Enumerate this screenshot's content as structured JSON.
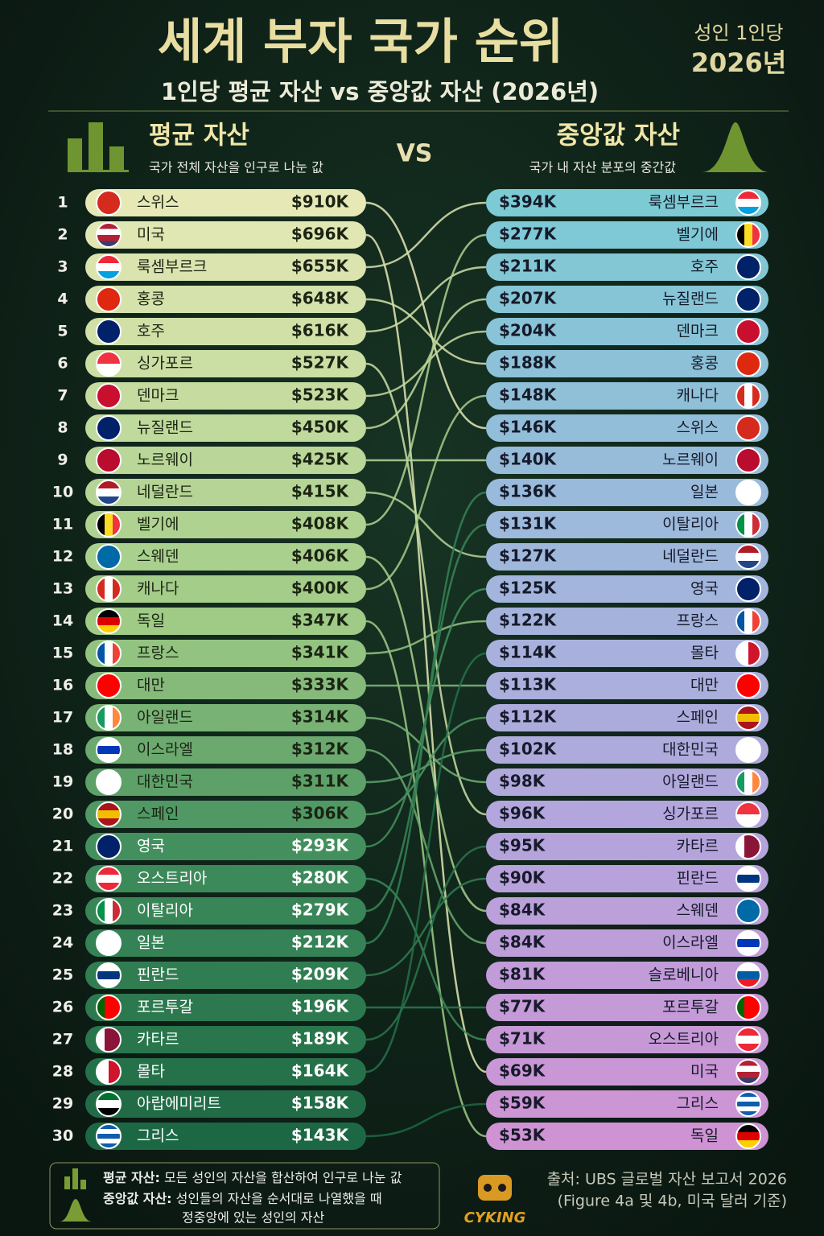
{
  "header": {
    "title": "세계 부자 국가 순위",
    "subtitle": "1인당 평균 자산 vs 중앙값 자산 (2026년)",
    "badge_line1": "성인 1인당",
    "badge_line2": "2026년"
  },
  "vs": "VS",
  "left": {
    "title": "평균 자산",
    "desc": "국가 전체 자산을 인구로 나눈 값",
    "rows": [
      {
        "rank": 1,
        "name": "스위스",
        "value": "$910K",
        "flag": [
          "h",
          "#d52b1e"
        ]
      },
      {
        "rank": 2,
        "name": "미국",
        "value": "$696K",
        "flag": [
          "h",
          "#b22234",
          "#ffffff",
          "#b22234",
          "#3c3b6e"
        ]
      },
      {
        "rank": 3,
        "name": "룩셈부르크",
        "value": "$655K",
        "flag": [
          "h",
          "#ed2939",
          "#ffffff",
          "#00a1de"
        ]
      },
      {
        "rank": 4,
        "name": "홍콩",
        "value": "$648K",
        "flag": [
          "h",
          "#de2910"
        ]
      },
      {
        "rank": 5,
        "name": "호주",
        "value": "$616K",
        "flag": [
          "h",
          "#012169"
        ]
      },
      {
        "rank": 6,
        "name": "싱가포르",
        "value": "$527K",
        "flag": [
          "h",
          "#ef3340",
          "#ffffff"
        ]
      },
      {
        "rank": 7,
        "name": "덴마크",
        "value": "$523K",
        "flag": [
          "h",
          "#c8102e"
        ]
      },
      {
        "rank": 8,
        "name": "뉴질랜드",
        "value": "$450K",
        "flag": [
          "h",
          "#012169"
        ]
      },
      {
        "rank": 9,
        "name": "노르웨이",
        "value": "$425K",
        "flag": [
          "h",
          "#ba0c2f"
        ]
      },
      {
        "rank": 10,
        "name": "네덜란드",
        "value": "$415K",
        "flag": [
          "h",
          "#ae1c28",
          "#ffffff",
          "#21468b"
        ]
      },
      {
        "rank": 11,
        "name": "벨기에",
        "value": "$408K",
        "flag": [
          "v",
          "#000000",
          "#fdda24",
          "#ef3340"
        ]
      },
      {
        "rank": 12,
        "name": "스웨덴",
        "value": "$406K",
        "flag": [
          "h",
          "#006aa7"
        ]
      },
      {
        "rank": 13,
        "name": "캐나다",
        "value": "$400K",
        "flag": [
          "v",
          "#d52b1e",
          "#ffffff",
          "#d52b1e"
        ]
      },
      {
        "rank": 14,
        "name": "독일",
        "value": "$347K",
        "flag": [
          "h",
          "#000000",
          "#dd0000",
          "#ffce00"
        ]
      },
      {
        "rank": 15,
        "name": "프랑스",
        "value": "$341K",
        "flag": [
          "v",
          "#0055a4",
          "#ffffff",
          "#ef4135"
        ]
      },
      {
        "rank": 16,
        "name": "대만",
        "value": "$333K",
        "flag": [
          "h",
          "#fe0000"
        ]
      },
      {
        "rank": 17,
        "name": "아일랜드",
        "value": "$314K",
        "flag": [
          "v",
          "#169b62",
          "#ffffff",
          "#ff883e"
        ]
      },
      {
        "rank": 18,
        "name": "이스라엘",
        "value": "$312K",
        "flag": [
          "h",
          "#ffffff",
          "#0038b8",
          "#ffffff"
        ]
      },
      {
        "rank": 19,
        "name": "대한민국",
        "value": "$311K",
        "flag": [
          "h",
          "#ffffff"
        ]
      },
      {
        "rank": 20,
        "name": "스페인",
        "value": "$306K",
        "flag": [
          "h",
          "#aa151b",
          "#f1bf00",
          "#aa151b"
        ]
      },
      {
        "rank": 21,
        "name": "영국",
        "value": "$293K",
        "flag": [
          "h",
          "#012169"
        ]
      },
      {
        "rank": 22,
        "name": "오스트리아",
        "value": "$280K",
        "flag": [
          "h",
          "#ed2939",
          "#ffffff",
          "#ed2939"
        ]
      },
      {
        "rank": 23,
        "name": "이탈리아",
        "value": "$279K",
        "flag": [
          "v",
          "#009246",
          "#ffffff",
          "#ce2b37"
        ]
      },
      {
        "rank": 24,
        "name": "일본",
        "value": "$212K",
        "flag": [
          "h",
          "#ffffff"
        ]
      },
      {
        "rank": 25,
        "name": "핀란드",
        "value": "$209K",
        "flag": [
          "h",
          "#ffffff",
          "#003580",
          "#ffffff"
        ]
      },
      {
        "rank": 26,
        "name": "포르투갈",
        "value": "$196K",
        "flag": [
          "v",
          "#006600",
          "#ff0000",
          "#ff0000"
        ]
      },
      {
        "rank": 27,
        "name": "카타르",
        "value": "$189K",
        "flag": [
          "v",
          "#ffffff",
          "#8a1538",
          "#8a1538"
        ]
      },
      {
        "rank": 28,
        "name": "몰타",
        "value": "$164K",
        "flag": [
          "v",
          "#ffffff",
          "#cf142b"
        ]
      },
      {
        "rank": 29,
        "name": "아랍에미리트",
        "value": "$158K",
        "flag": [
          "h",
          "#00732f",
          "#ffffff",
          "#000000"
        ]
      },
      {
        "rank": 30,
        "name": "그리스",
        "value": "$143K",
        "flag": [
          "h",
          "#0d5eaf",
          "#ffffff",
          "#0d5eaf",
          "#ffffff",
          "#0d5eaf"
        ]
      }
    ]
  },
  "right": {
    "title": "중앙값 자산",
    "desc": "국가 내 자산 분포의 중간값",
    "rows": [
      {
        "name": "룩셈부르크",
        "value": "$394K",
        "flag": [
          "h",
          "#ed2939",
          "#ffffff",
          "#00a1de"
        ]
      },
      {
        "name": "벨기에",
        "value": "$277K",
        "flag": [
          "v",
          "#000000",
          "#fdda24",
          "#ef3340"
        ]
      },
      {
        "name": "호주",
        "value": "$211K",
        "flag": [
          "h",
          "#012169"
        ]
      },
      {
        "name": "뉴질랜드",
        "value": "$207K",
        "flag": [
          "h",
          "#012169"
        ]
      },
      {
        "name": "덴마크",
        "value": "$204K",
        "flag": [
          "h",
          "#c8102e"
        ]
      },
      {
        "name": "홍콩",
        "value": "$188K",
        "flag": [
          "h",
          "#de2910"
        ]
      },
      {
        "name": "캐나다",
        "value": "$148K",
        "flag": [
          "v",
          "#d52b1e",
          "#ffffff",
          "#d52b1e"
        ]
      },
      {
        "name": "스위스",
        "value": "$146K",
        "flag": [
          "h",
          "#d52b1e"
        ]
      },
      {
        "name": "노르웨이",
        "value": "$140K",
        "flag": [
          "h",
          "#ba0c2f"
        ]
      },
      {
        "name": "일본",
        "value": "$136K",
        "flag": [
          "h",
          "#ffffff"
        ]
      },
      {
        "name": "이탈리아",
        "value": "$131K",
        "flag": [
          "v",
          "#009246",
          "#ffffff",
          "#ce2b37"
        ]
      },
      {
        "name": "네덜란드",
        "value": "$127K",
        "flag": [
          "h",
          "#ae1c28",
          "#ffffff",
          "#21468b"
        ]
      },
      {
        "name": "영국",
        "value": "$125K",
        "flag": [
          "h",
          "#012169"
        ]
      },
      {
        "name": "프랑스",
        "value": "$122K",
        "flag": [
          "v",
          "#0055a4",
          "#ffffff",
          "#ef4135"
        ]
      },
      {
        "name": "몰타",
        "value": "$114K",
        "flag": [
          "v",
          "#ffffff",
          "#cf142b"
        ]
      },
      {
        "name": "대만",
        "value": "$113K",
        "flag": [
          "h",
          "#fe0000"
        ]
      },
      {
        "name": "스페인",
        "value": "$112K",
        "flag": [
          "h",
          "#aa151b",
          "#f1bf00",
          "#aa151b"
        ]
      },
      {
        "name": "대한민국",
        "value": "$102K",
        "flag": [
          "h",
          "#ffffff"
        ]
      },
      {
        "name": "아일랜드",
        "value": "$98K",
        "flag": [
          "v",
          "#169b62",
          "#ffffff",
          "#ff883e"
        ]
      },
      {
        "name": "싱가포르",
        "value": "$96K",
        "flag": [
          "h",
          "#ef3340",
          "#ffffff"
        ]
      },
      {
        "name": "카타르",
        "value": "$95K",
        "flag": [
          "v",
          "#ffffff",
          "#8a1538",
          "#8a1538"
        ]
      },
      {
        "name": "핀란드",
        "value": "$90K",
        "flag": [
          "h",
          "#ffffff",
          "#003580",
          "#ffffff"
        ]
      },
      {
        "name": "스웨덴",
        "value": "$84K",
        "flag": [
          "h",
          "#006aa7"
        ]
      },
      {
        "name": "이스라엘",
        "value": "$84K",
        "flag": [
          "h",
          "#ffffff",
          "#0038b8",
          "#ffffff"
        ]
      },
      {
        "name": "슬로베니아",
        "value": "$81K",
        "flag": [
          "h",
          "#ffffff",
          "#005da4",
          "#ed1c24"
        ]
      },
      {
        "name": "포르투갈",
        "value": "$77K",
        "flag": [
          "v",
          "#006600",
          "#ff0000",
          "#ff0000"
        ]
      },
      {
        "name": "오스트리아",
        "value": "$71K",
        "flag": [
          "h",
          "#ed2939",
          "#ffffff",
          "#ed2939"
        ]
      },
      {
        "name": "미국",
        "value": "$69K",
        "flag": [
          "h",
          "#b22234",
          "#ffffff",
          "#b22234",
          "#3c3b6e"
        ]
      },
      {
        "name": "그리스",
        "value": "$59K",
        "flag": [
          "h",
          "#0d5eaf",
          "#ffffff",
          "#0d5eaf",
          "#ffffff",
          "#0d5eaf"
        ]
      },
      {
        "name": "독일",
        "value": "$53K",
        "flag": [
          "h",
          "#000000",
          "#dd0000",
          "#ffce00"
        ]
      }
    ]
  },
  "legend": [
    {
      "term": "평균 자산:",
      "text": [
        "모든 성인의 자산을 합산하여 인구로 나눈 값"
      ]
    },
    {
      "term": "중앙값 자산:",
      "text": [
        "성인들의 자산을 순서대로 나열했을 때",
        "정중앙에 있는 성인의 자산"
      ]
    }
  ],
  "source": [
    "출처: UBS 글로벌 자산 보고서 2026",
    "(Figure 4a 및 4b, 미국 달러 기준)"
  ],
  "logo": "CYKING"
}
